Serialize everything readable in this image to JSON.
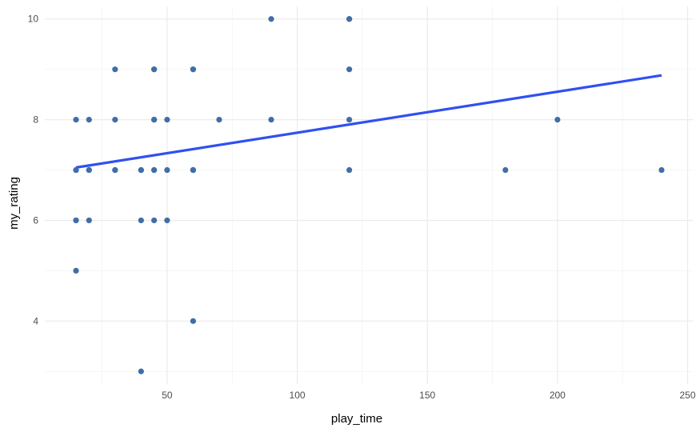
{
  "chart_data": {
    "type": "scatter",
    "xlabel": "play_time",
    "ylabel": "my_rating",
    "xlim": [
      3,
      252
    ],
    "ylim": [
      2.75,
      10.25
    ],
    "x_ticks": [
      50,
      100,
      150,
      200,
      250
    ],
    "x_minor_ticks": [
      25,
      75,
      125,
      175,
      225
    ],
    "y_ticks": [
      4,
      6,
      8,
      10
    ],
    "y_minor_ticks": [
      3,
      5,
      7,
      9
    ],
    "grid": true,
    "point_color": "#3F6EA8",
    "line_color": "#3050F0",
    "points": [
      {
        "x": 15,
        "y": 8
      },
      {
        "x": 15,
        "y": 7
      },
      {
        "x": 15,
        "y": 7
      },
      {
        "x": 15,
        "y": 6
      },
      {
        "x": 15,
        "y": 6
      },
      {
        "x": 15,
        "y": 5
      },
      {
        "x": 20,
        "y": 8
      },
      {
        "x": 20,
        "y": 7
      },
      {
        "x": 20,
        "y": 7
      },
      {
        "x": 20,
        "y": 6
      },
      {
        "x": 30,
        "y": 9
      },
      {
        "x": 30,
        "y": 8
      },
      {
        "x": 30,
        "y": 7
      },
      {
        "x": 30,
        "y": 7
      },
      {
        "x": 40,
        "y": 7
      },
      {
        "x": 40,
        "y": 7
      },
      {
        "x": 40,
        "y": 6
      },
      {
        "x": 40,
        "y": 3
      },
      {
        "x": 45,
        "y": 9
      },
      {
        "x": 45,
        "y": 9
      },
      {
        "x": 45,
        "y": 8
      },
      {
        "x": 45,
        "y": 8
      },
      {
        "x": 45,
        "y": 7
      },
      {
        "x": 45,
        "y": 7
      },
      {
        "x": 45,
        "y": 6
      },
      {
        "x": 50,
        "y": 8
      },
      {
        "x": 50,
        "y": 7
      },
      {
        "x": 50,
        "y": 6
      },
      {
        "x": 60,
        "y": 9
      },
      {
        "x": 60,
        "y": 9
      },
      {
        "x": 60,
        "y": 7
      },
      {
        "x": 60,
        "y": 7
      },
      {
        "x": 60,
        "y": 7
      },
      {
        "x": 60,
        "y": 4
      },
      {
        "x": 70,
        "y": 8
      },
      {
        "x": 90,
        "y": 10
      },
      {
        "x": 90,
        "y": 8
      },
      {
        "x": 120,
        "y": 10
      },
      {
        "x": 120,
        "y": 10
      },
      {
        "x": 120,
        "y": 9
      },
      {
        "x": 120,
        "y": 8
      },
      {
        "x": 120,
        "y": 7
      },
      {
        "x": 180,
        "y": 7
      },
      {
        "x": 200,
        "y": 8
      },
      {
        "x": 240,
        "y": 7
      }
    ],
    "trend_line": {
      "x": [
        15,
        240
      ],
      "y": [
        7.05,
        8.88
      ]
    }
  }
}
